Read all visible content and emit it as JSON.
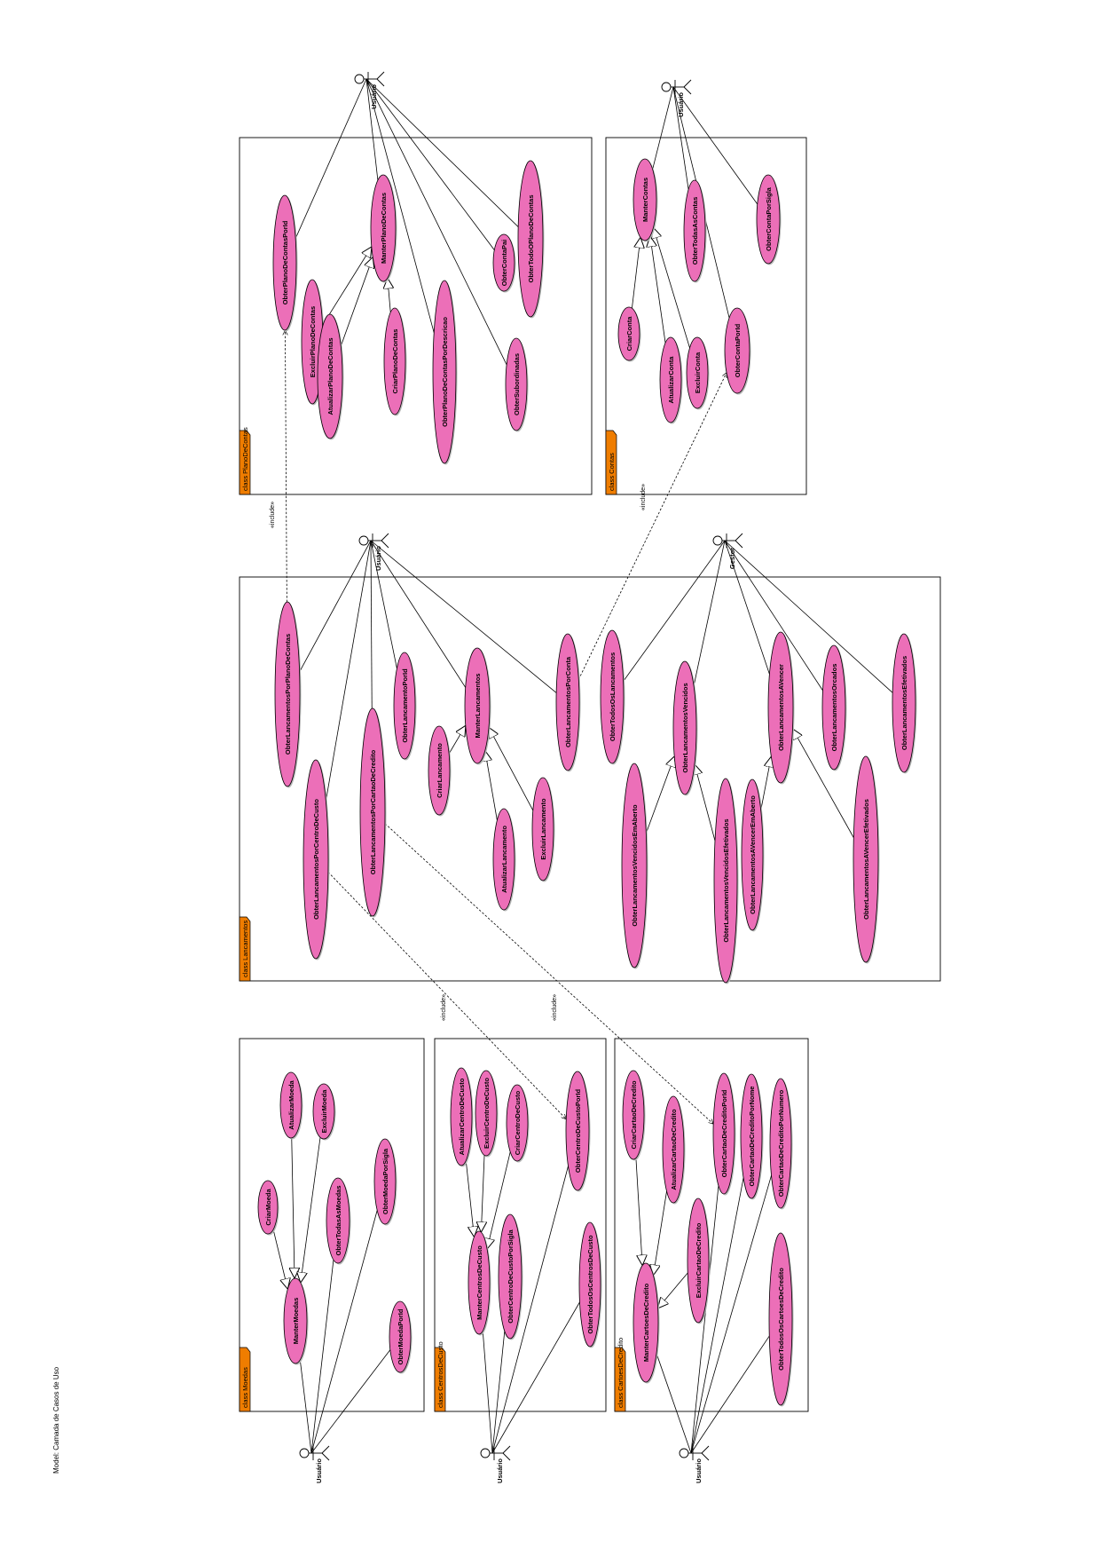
{
  "model_label": "Model: Camada de Casos de Uso",
  "include_label": "«include»",
  "colors": {
    "usecase_fill": "#ec6fb8",
    "tab_fill": "#ef7d00",
    "line": "#000000",
    "frame_bg": "#ffffff"
  },
  "frames": [
    {
      "id": "moedas",
      "label": "class Moedas"
    },
    {
      "id": "centros",
      "label": "class CentrosDeCusto"
    },
    {
      "id": "cartoes",
      "label": "class CartoesDeCredito"
    },
    {
      "id": "lanc",
      "label": "class Lancamentos"
    },
    {
      "id": "plano",
      "label": "class PlanoDeContas"
    },
    {
      "id": "contas",
      "label": "class Contas"
    }
  ],
  "actors": [
    {
      "id": "a_moedas",
      "name": "Usuário"
    },
    {
      "id": "a_centros",
      "name": "Usuário"
    },
    {
      "id": "a_cartoes",
      "name": "Usuário"
    },
    {
      "id": "a_lanc_user",
      "name": "Usuário"
    },
    {
      "id": "a_lanc_gestor",
      "name": "Gestor"
    },
    {
      "id": "a_plano",
      "name": "Usuário"
    },
    {
      "id": "a_contas",
      "name": "Usuário"
    }
  ],
  "use_cases": [
    {
      "id": "m_manter",
      "label": "ManterMoedas"
    },
    {
      "id": "m_criar",
      "label": "CriarMoeda"
    },
    {
      "id": "m_atual",
      "label": "AtualizarMoeda"
    },
    {
      "id": "m_excluir",
      "label": "ExcluirMoeda"
    },
    {
      "id": "m_todas",
      "label": "ObterTodasAsMoedas"
    },
    {
      "id": "m_sigla",
      "label": "ObterMoedaPorSigla"
    },
    {
      "id": "m_id",
      "label": "ObterMoedaPorId"
    },
    {
      "id": "c_atual",
      "label": "AtualizarCentroDeCusto"
    },
    {
      "id": "c_excluir",
      "label": "ExcluirCentroDeCusto"
    },
    {
      "id": "c_criar",
      "label": "CriarCentroDeCusto"
    },
    {
      "id": "c_id",
      "label": "ObterCentroDeCustoPorId"
    },
    {
      "id": "c_manter",
      "label": "ManterCentrosDeCusto"
    },
    {
      "id": "c_sigla",
      "label": "ObterCentroDeCustoPorSigla"
    },
    {
      "id": "c_todos",
      "label": "ObterTodosOsCentrosDeCusto"
    },
    {
      "id": "k_criar",
      "label": "CriarCartaoDeCredito"
    },
    {
      "id": "k_atual",
      "label": "AtualizarCartaoDeCredito"
    },
    {
      "id": "k_excluir",
      "label": "ExcluirCartaoDeCredito"
    },
    {
      "id": "k_manter",
      "label": "ManterCartoesDeCredito"
    },
    {
      "id": "k_id",
      "label": "ObterCartaoDeCreditoPorId"
    },
    {
      "id": "k_nome",
      "label": "ObterCartaoDeCreditoPorNome"
    },
    {
      "id": "k_numero",
      "label": "ObterCartaoDeCreditoPorNumero"
    },
    {
      "id": "k_todos",
      "label": "ObterTodosOsCartoesDeCredito"
    },
    {
      "id": "l_plano",
      "label": "ObterLancamentosPorPlanoDeContas"
    },
    {
      "id": "l_centro",
      "label": "ObterLancamentosPorCentroDeCusto"
    },
    {
      "id": "l_cartao",
      "label": "ObterLancamentosPorCartaoDeCredito"
    },
    {
      "id": "l_id",
      "label": "ObterLancamentoPorId"
    },
    {
      "id": "l_manter",
      "label": "ManterLancamentos"
    },
    {
      "id": "l_criar",
      "label": "CriarLancamento"
    },
    {
      "id": "l_atual",
      "label": "AtualizarLancamento"
    },
    {
      "id": "l_excluir",
      "label": "ExcluirLancamento"
    },
    {
      "id": "l_conta",
      "label": "ObterLancamentosPorConta"
    },
    {
      "id": "l_todos",
      "label": "ObterTodosOsLancamentos"
    },
    {
      "id": "l_venc_ab",
      "label": "ObterLancamentosVencidosEmAberto"
    },
    {
      "id": "l_vencidos",
      "label": "ObterLancamentosVencidos"
    },
    {
      "id": "l_venc_ef",
      "label": "ObterLancamentosVencidosEfetivados"
    },
    {
      "id": "l_avencer_ab",
      "label": "ObterLancamentosAVencerEmAberto"
    },
    {
      "id": "l_avencer",
      "label": "ObterLancamentosAVencer"
    },
    {
      "id": "l_orcados",
      "label": "ObterLancamentosOrcados"
    },
    {
      "id": "l_avencer_ef",
      "label": "ObterLancamentosAVencerEfetivados"
    },
    {
      "id": "l_efetivados",
      "label": "ObterLancamentosEfetivados"
    },
    {
      "id": "p_id",
      "label": "ObterPlanoDeContasPorId"
    },
    {
      "id": "p_excluir",
      "label": "ExcluirPlanoDeContas"
    },
    {
      "id": "p_atual",
      "label": "AtualizarPlanoDeContas"
    },
    {
      "id": "p_manter",
      "label": "ManterPlanoDeContas"
    },
    {
      "id": "p_criar",
      "label": "CriarPlanoDeContas"
    },
    {
      "id": "p_desc",
      "label": "ObterPlanoDeContasPorDescricao"
    },
    {
      "id": "p_pai",
      "label": "ObterContaPai"
    },
    {
      "id": "p_sub",
      "label": "ObterSubordinadas"
    },
    {
      "id": "p_todo",
      "label": "ObterTodoOPlanoDeContas"
    },
    {
      "id": "t_manter",
      "label": "ManterContas"
    },
    {
      "id": "t_criar",
      "label": "CriarConta"
    },
    {
      "id": "t_atual",
      "label": "AtualizarConta"
    },
    {
      "id": "t_excluir",
      "label": "ExcluirConta"
    },
    {
      "id": "t_todas",
      "label": "ObterTodasAsContas"
    },
    {
      "id": "t_id",
      "label": "ObterContaPorId"
    },
    {
      "id": "t_sigla",
      "label": "ObterContaPorSigla"
    }
  ]
}
